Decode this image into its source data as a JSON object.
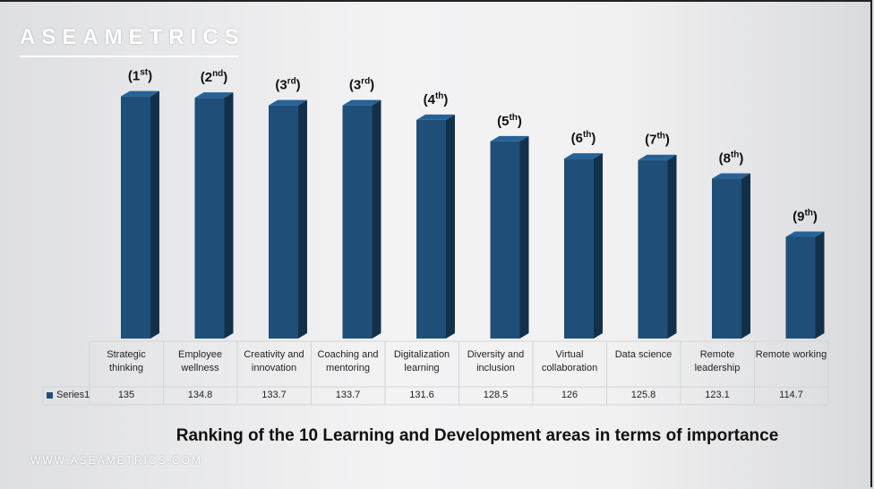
{
  "brand": "ASEAMETRICS",
  "footer": "WWW.ASEAMETRICS.COM",
  "chart_data": {
    "type": "bar3d",
    "title": "Ranking of the 10 Learning and Development areas in terms of importance",
    "categories": [
      "Strategic thinking",
      "Employee wellness",
      "Creativity and innovation",
      "Coaching and mentoring",
      "Digitalization learning",
      "Diversity and inclusion",
      "Virtual collaboration",
      "Data science",
      "Remote leadership",
      "Remote working"
    ],
    "series": [
      {
        "name": "Series1",
        "color": "#1f4e79",
        "values": [
          135,
          134.8,
          133.7,
          133.7,
          131.6,
          128.5,
          126,
          125.8,
          123.1,
          114.7
        ]
      }
    ],
    "ranks": [
      [
        "(1",
        "st",
        ")"
      ],
      [
        "(2",
        "nd",
        ")"
      ],
      [
        "(3",
        "rd",
        ")"
      ],
      [
        "(3",
        "rd",
        ")"
      ],
      [
        "(4",
        "th",
        ")"
      ],
      [
        "(5",
        "th",
        ")"
      ],
      [
        "(6",
        "th",
        ")"
      ],
      [
        "(7",
        "th",
        ")"
      ],
      [
        "(8",
        "th",
        ")"
      ],
      [
        "(9",
        "th",
        ")"
      ]
    ],
    "ylim": [
      100,
      140
    ],
    "grid": false,
    "legend": "table"
  }
}
